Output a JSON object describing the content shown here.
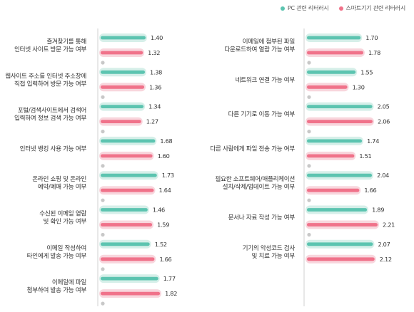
{
  "legend": {
    "pc_label": "PC 관련 리터러시",
    "smart_label": "스마트기기 관련 리터러시"
  },
  "colors": {
    "pc": "#5cc4b0",
    "pc_halo": "#d6efe9",
    "smart": "#f0728a",
    "smart_halo": "#f8d6dd",
    "axis": "#d8d8d8"
  },
  "chart_data": [
    {
      "type": "bar",
      "orientation": "horizontal",
      "categories": [
        [
          "즐겨찾기를 통해",
          "인터넷 사이트 방문 가능 여부"
        ],
        [
          "웹사이트 주소를 인터넷 주소창에",
          "직접 입력하여 방문 가능 여부"
        ],
        [
          "포털/검색사이트에서 검색어",
          "입력하여 정보 검색 가능 여부"
        ],
        [
          "인터넷 뱅킹 사용 가능 여부"
        ],
        [
          "온라인 쇼핑 및 온라인",
          "예약/예매 가능 여부"
        ],
        [
          "수신된 이메일 열람",
          "및 확인 가능 여부"
        ],
        [
          "이메일 작성하여",
          "타인에게 발송 가능 여부"
        ],
        [
          "이메일에 파일",
          "첨부하여 발송 가능 여부"
        ]
      ],
      "series": [
        {
          "name": "PC 관련 리터러시",
          "values": [
            1.4,
            1.38,
            1.34,
            1.68,
            1.73,
            1.46,
            1.52,
            1.77
          ],
          "labels": [
            "1.40",
            "1.38",
            "1.34",
            "1.68",
            "1.73",
            "1.46",
            "1.52",
            "1.77"
          ]
        },
        {
          "name": "스마트기기 관련 리터러시",
          "values": [
            1.32,
            1.36,
            1.27,
            1.6,
            1.64,
            1.59,
            1.66,
            1.82
          ],
          "labels": [
            "1.32",
            "1.36",
            "1.27",
            "1.60",
            "1.64",
            "1.59",
            "1.66",
            "1.82"
          ]
        }
      ],
      "xlim": [
        0,
        2.3
      ]
    },
    {
      "type": "bar",
      "orientation": "horizontal",
      "categories": [
        [
          "이메일에 첨부된 파일",
          "다운로드하여 열람 가능 여부"
        ],
        [
          "네트워크 연결 가능 여부"
        ],
        [
          "다른 기기로 이동 가능 여부"
        ],
        [
          "다른 사람에게 파일 전송 가능 여부"
        ],
        [
          "필요한 소프트웨어/애플리케이션",
          "설치/삭제/업데이트 가능 여부"
        ],
        [
          "문서나 자료 작성 가능 여부"
        ],
        [
          "기기의 악성코드 검사",
          "및 치료 가능 여부"
        ]
      ],
      "series": [
        {
          "name": "PC 관련 리터러시",
          "values": [
            1.7,
            1.55,
            2.05,
            1.74,
            2.04,
            1.89,
            2.07
          ],
          "labels": [
            "1.70",
            "1.55",
            "2.05",
            "1.74",
            "2.04",
            "1.89",
            "2.07"
          ]
        },
        {
          "name": "스마트기기 관련 리터러시",
          "values": [
            1.78,
            1.3,
            2.06,
            1.51,
            1.66,
            2.21,
            2.12
          ],
          "labels": [
            "1.78",
            "1.30",
            "2.06",
            "1.51",
            "1.66",
            "2.21",
            "2.12"
          ]
        }
      ],
      "xlim": [
        0,
        2.3
      ]
    }
  ]
}
